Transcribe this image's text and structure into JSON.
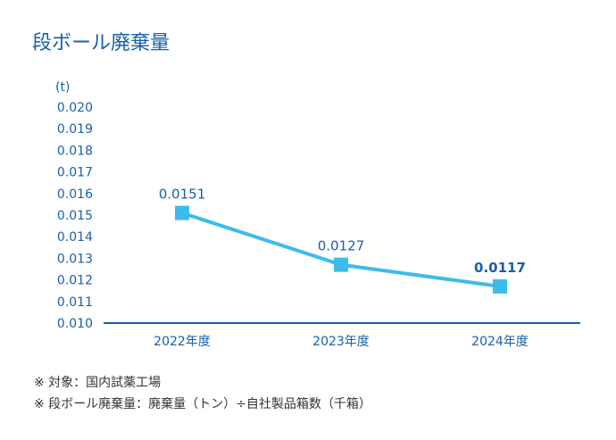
{
  "title": "段ボール廃棄量",
  "notes": [
    "※ 対象：国内試薬工場",
    "※ 段ボール廃棄量：廃棄量（トン）÷自社製品箱数（千箱）"
  ],
  "colors": {
    "title": "#1a5fa8",
    "axis_text": "#1a5fa8",
    "line": "#3cbcea",
    "marker": "#3cbcea",
    "baseline": "#1a5fa8"
  },
  "chart_data": {
    "type": "line",
    "title": "段ボール廃棄量",
    "ylabel": "(t)",
    "xlabel": "",
    "categories": [
      "2022年度",
      "2023年度",
      "2024年度"
    ],
    "values": [
      0.0151,
      0.0127,
      0.0117
    ],
    "data_labels": [
      "0.0151",
      "0.0127",
      "0.0117"
    ],
    "bold_labels": [
      false,
      false,
      true
    ],
    "ylim": [
      0.01,
      0.02
    ],
    "yticks": [
      0.01,
      0.011,
      0.012,
      0.013,
      0.014,
      0.015,
      0.016,
      0.017,
      0.018,
      0.019,
      0.02
    ],
    "ytick_labels": [
      "0.010",
      "0.011",
      "0.012",
      "0.013",
      "0.014",
      "0.015",
      "0.016",
      "0.017",
      "0.018",
      "0.019",
      "0.020"
    ],
    "grid": false,
    "legend": "none"
  }
}
